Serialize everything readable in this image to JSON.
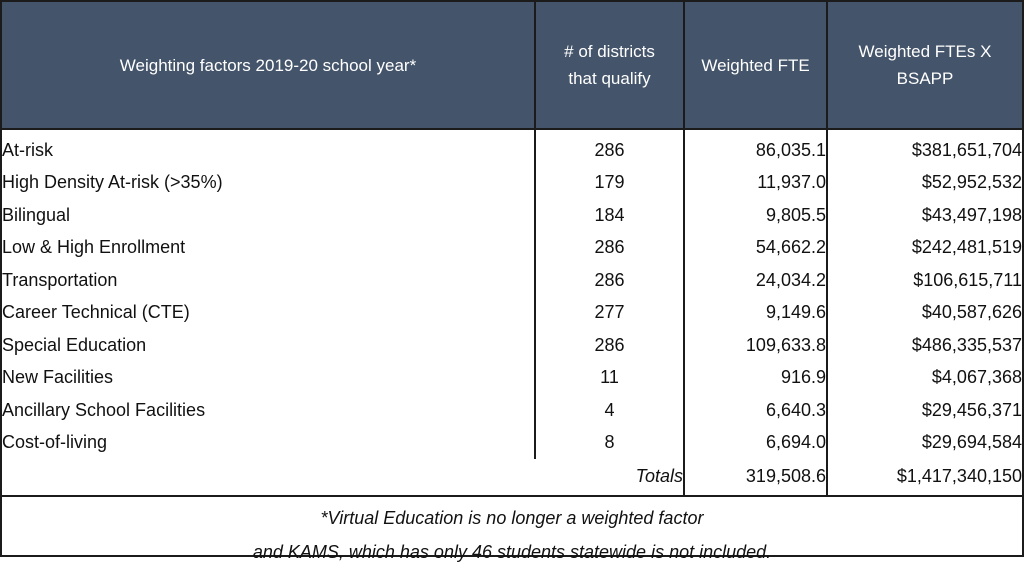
{
  "table": {
    "headers": {
      "factor": "Weighting factors 2019-20 school year*",
      "districts_line1": "# of districts",
      "districts_line2": "that qualify",
      "fte": "Weighted FTE",
      "bsapp_line1": "Weighted FTEs X",
      "bsapp_line2": "BSAPP"
    },
    "rows": [
      {
        "factor": "At-risk",
        "districts": "286",
        "fte": "86,035.1",
        "bsapp": "$381,651,704"
      },
      {
        "factor": "High Density At-risk (>35%)",
        "districts": "179",
        "fte": "11,937.0",
        "bsapp": "$52,952,532"
      },
      {
        "factor": "Bilingual",
        "districts": "184",
        "fte": "9,805.5",
        "bsapp": "$43,497,198"
      },
      {
        "factor": "Low & High Enrollment",
        "districts": "286",
        "fte": "54,662.2",
        "bsapp": "$242,481,519"
      },
      {
        "factor": "Transportation",
        "districts": "286",
        "fte": "24,034.2",
        "bsapp": "$106,615,711"
      },
      {
        "factor": "Career Technical (CTE)",
        "districts": "277",
        "fte": "9,149.6",
        "bsapp": "$40,587,626"
      },
      {
        "factor": "Special Education",
        "districts": "286",
        "fte": "109,633.8",
        "bsapp": "$486,335,537"
      },
      {
        "factor": "New Facilities",
        "districts": "11",
        "fte": "916.9",
        "bsapp": "$4,067,368"
      },
      {
        "factor": "Ancillary School Facilities",
        "districts": "4",
        "fte": "6,640.3",
        "bsapp": "$29,456,371"
      },
      {
        "factor": "Cost-of-living",
        "districts": "8",
        "fte": "6,694.0",
        "bsapp": "$29,694,584"
      }
    ],
    "totals": {
      "label": "Totals",
      "fte": "319,508.6",
      "bsapp": "$1,417,340,150"
    }
  },
  "footnote": {
    "line1": "*Virtual Education is no longer a weighted factor",
    "line2": "and KAMS, which has only 46 students statewide is not included."
  }
}
